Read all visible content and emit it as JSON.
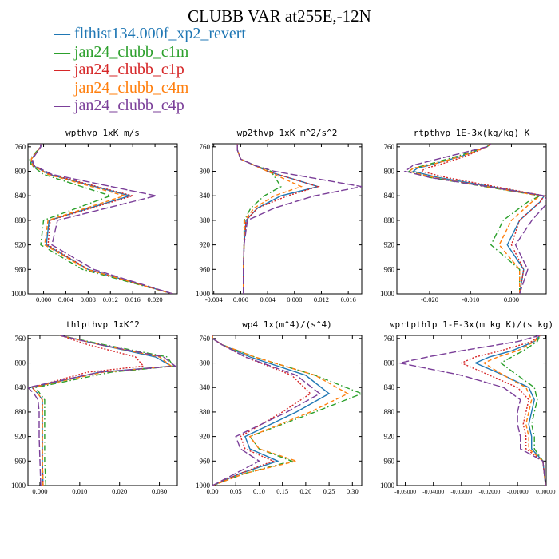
{
  "title": "CLUBB VAR at255E,-12N",
  "legend": [
    {
      "label": "flthist134.000f_xp2_revert",
      "color": "#1f77b4",
      "dash": "solid"
    },
    {
      "label": "jan24_clubb_c1m",
      "color": "#2ca02c",
      "dash": "dashdot"
    },
    {
      "label": "jan24_clubb_c1p",
      "color": "#d62728",
      "dash": "dotted"
    },
    {
      "label": "jan24_clubb_c4m",
      "color": "#ff7f0e",
      "dash": "dashed"
    },
    {
      "label": "jan24_clubb_c4p",
      "color": "#7b3f99",
      "dash": "longdash"
    }
  ],
  "chart_data": [
    {
      "type": "line",
      "title": "wpthvp  1xK m/s",
      "y": [
        1000,
        960,
        920,
        880,
        840,
        805,
        790,
        780,
        760,
        755
      ],
      "yticks": [
        760,
        800,
        840,
        880,
        920,
        960,
        1000
      ],
      "ylim": [
        755,
        1000
      ],
      "xlim": [
        -0.0028,
        0.024
      ],
      "xticks": [
        0.0,
        0.004,
        0.008,
        0.012,
        0.016,
        0.02
      ],
      "xticklabels": [
        "0.000",
        "0.004",
        "0.008",
        "0.012",
        "0.016",
        "0.020"
      ],
      "series": [
        {
          "values": [
            0.0232,
            0.008,
            0.0005,
            0.001,
            0.0155,
            0.001,
            -0.002,
            -0.0022,
            -0.0005,
            -0.0005
          ]
        },
        {
          "values": [
            0.0232,
            0.007,
            -0.0005,
            0.0,
            0.012,
            0.0,
            -0.0022,
            -0.0025,
            -0.0005,
            -0.0005
          ]
        },
        {
          "values": [
            0.0232,
            0.008,
            0.0008,
            0.0012,
            0.016,
            0.0012,
            -0.002,
            -0.0022,
            -0.0005,
            -0.0005
          ]
        },
        {
          "values": [
            0.0232,
            0.0078,
            0.0002,
            0.0008,
            0.0145,
            0.0008,
            -0.002,
            -0.0022,
            -0.0005,
            -0.0005
          ]
        },
        {
          "values": [
            0.0232,
            0.009,
            0.0015,
            0.0025,
            0.0202,
            0.0015,
            -0.0018,
            -0.002,
            -0.0005,
            -0.0005
          ]
        }
      ]
    },
    {
      "type": "line",
      "title": "wp2thvp  1xK m^2/s^2",
      "y": [
        1000,
        960,
        920,
        880,
        860,
        840,
        825,
        800,
        790,
        780,
        765,
        755
      ],
      "yticks": [
        760,
        800,
        840,
        880,
        920,
        960,
        1000
      ],
      "ylim": [
        755,
        1000
      ],
      "xlim": [
        -0.0042,
        0.018
      ],
      "xticks": [
        -0.004,
        0.0,
        0.004,
        0.008,
        0.012,
        0.016
      ],
      "xticklabels": [
        "-0.004",
        "0.000",
        "0.004",
        "0.008",
        "0.012",
        "0.016"
      ],
      "series": [
        {
          "values": [
            0.0004,
            0.0004,
            0.0005,
            0.0008,
            0.0025,
            0.006,
            0.0115,
            0.004,
            0.002,
            0.0,
            -0.0005,
            -0.0005
          ]
        },
        {
          "values": [
            0.0004,
            0.0004,
            0.0005,
            0.0005,
            0.0015,
            0.0035,
            0.006,
            0.0045,
            0.002,
            0.0,
            -0.0005,
            -0.0005
          ]
        },
        {
          "values": [
            0.0004,
            0.0004,
            0.0005,
            0.0008,
            0.0025,
            0.007,
            0.0115,
            0.004,
            0.002,
            0.0,
            -0.0005,
            -0.0005
          ]
        },
        {
          "values": [
            0.0004,
            0.0004,
            0.0005,
            0.0006,
            0.002,
            0.005,
            0.009,
            0.004,
            0.002,
            0.0,
            -0.0005,
            -0.0005
          ]
        },
        {
          "values": [
            0.0004,
            0.0004,
            0.0005,
            0.001,
            0.005,
            0.011,
            0.018,
            0.005,
            0.002,
            0.0,
            -0.0005,
            -0.0005
          ]
        }
      ]
    },
    {
      "type": "line",
      "title": "rtpthvp  1E-3x(kg/kg) K",
      "y": [
        1000,
        960,
        920,
        880,
        850,
        840,
        810,
        800,
        795,
        790,
        775,
        760,
        755
      ],
      "yticks": [
        760,
        800,
        840,
        880,
        920,
        960,
        1000
      ],
      "ylim": [
        755,
        1000
      ],
      "xlim": [
        -0.028,
        0.0085
      ],
      "xticks": [
        -0.02,
        -0.01,
        0.0
      ],
      "xticklabels": [
        "-0.020",
        "-0.010",
        "0.000"
      ],
      "series": [
        {
          "values": [
            0.002,
            0.003,
            -0.001,
            0.002,
            0.007,
            0.008,
            -0.018,
            -0.024,
            -0.023,
            -0.02,
            -0.012,
            -0.006,
            -0.005
          ]
        },
        {
          "values": [
            0.002,
            0.002,
            -0.005,
            -0.002,
            0.004,
            0.007,
            -0.02,
            -0.025,
            -0.024,
            -0.021,
            -0.013,
            -0.006,
            -0.005
          ]
        },
        {
          "values": [
            0.002,
            0.003,
            0.0,
            0.002,
            0.007,
            0.008,
            -0.016,
            -0.022,
            -0.021,
            -0.018,
            -0.011,
            -0.006,
            -0.005
          ]
        },
        {
          "values": [
            0.002,
            0.002,
            -0.003,
            0.0,
            0.005,
            0.007,
            -0.019,
            -0.025,
            -0.024,
            -0.02,
            -0.012,
            -0.006,
            -0.005
          ]
        },
        {
          "values": [
            0.002,
            0.004,
            0.001,
            0.005,
            0.009,
            0.008,
            -0.02,
            -0.026,
            -0.025,
            -0.024,
            -0.015,
            -0.006,
            -0.005
          ]
        }
      ]
    },
    {
      "type": "line",
      "title": "thlpthvp  1xK^2",
      "y": [
        1000,
        960,
        920,
        880,
        860,
        850,
        840,
        815,
        805,
        790,
        770,
        755
      ],
      "yticks": [
        760,
        800,
        840,
        880,
        920,
        960,
        1000
      ],
      "ylim": [
        755,
        1000
      ],
      "xlim": [
        -0.003,
        0.0345
      ],
      "xticks": [
        0.0,
        0.01,
        0.02,
        0.03
      ],
      "xticklabels": [
        "0.000",
        "0.010",
        "0.020",
        "0.030"
      ],
      "series": [
        {
          "values": [
            0.0008,
            0.0006,
            0.0006,
            0.0006,
            0.0006,
            -0.0005,
            -0.002,
            0.015,
            0.033,
            0.029,
            0.015,
            0.005
          ]
        },
        {
          "values": [
            0.0015,
            0.0012,
            0.0012,
            0.0012,
            0.0012,
            0.0,
            -0.001,
            0.018,
            0.0335,
            0.032,
            0.016,
            0.005
          ]
        },
        {
          "values": [
            0.0008,
            0.0006,
            0.0006,
            0.0006,
            0.0006,
            -0.0005,
            -0.002,
            0.012,
            0.026,
            0.024,
            0.012,
            0.005
          ]
        },
        {
          "values": [
            0.0008,
            0.0006,
            0.0006,
            0.0006,
            0.0006,
            -0.0005,
            -0.002,
            0.016,
            0.033,
            0.03,
            0.015,
            0.005
          ]
        },
        {
          "values": [
            0.0002,
            0.0,
            -0.0002,
            -0.0002,
            -0.0005,
            -0.0015,
            -0.003,
            0.015,
            0.034,
            0.031,
            0.015,
            0.005
          ]
        }
      ]
    },
    {
      "type": "line",
      "title": "wp4  1x(m^4)/(s^4)",
      "y": [
        1000,
        980,
        960,
        940,
        920,
        880,
        850,
        820,
        790,
        770,
        760,
        755
      ],
      "yticks": [
        760,
        800,
        840,
        880,
        920,
        960,
        1000
      ],
      "ylim": [
        755,
        1000
      ],
      "xlim": [
        0.0,
        0.32
      ],
      "xticks": [
        0.0,
        0.05,
        0.1,
        0.15,
        0.2,
        0.25,
        0.3
      ],
      "xticklabels": [
        "0.00",
        "0.05",
        "0.10",
        "0.15",
        "0.20",
        "0.25",
        "0.30"
      ],
      "series": [
        {
          "values": [
            0.0,
            0.06,
            0.14,
            0.08,
            0.07,
            0.18,
            0.25,
            0.2,
            0.08,
            0.02,
            0.0,
            0.0
          ]
        },
        {
          "values": [
            0.0,
            0.07,
            0.17,
            0.1,
            0.08,
            0.22,
            0.32,
            0.22,
            0.09,
            0.02,
            0.0,
            0.0
          ]
        },
        {
          "values": [
            0.0,
            0.06,
            0.13,
            0.07,
            0.06,
            0.15,
            0.21,
            0.17,
            0.07,
            0.02,
            0.0,
            0.0
          ]
        },
        {
          "values": [
            0.0,
            0.07,
            0.18,
            0.1,
            0.08,
            0.21,
            0.29,
            0.22,
            0.09,
            0.02,
            0.0,
            0.0
          ]
        },
        {
          "values": [
            0.0,
            0.05,
            0.1,
            0.06,
            0.05,
            0.16,
            0.23,
            0.18,
            0.07,
            0.02,
            0.0,
            0.0
          ]
        }
      ]
    },
    {
      "type": "line",
      "title": "wprtpthlp  1-E-3x(m kg K)/(s kg)",
      "y": [
        1000,
        960,
        940,
        920,
        900,
        880,
        860,
        840,
        820,
        800,
        790,
        780,
        765,
        755
      ],
      "yticks": [
        760,
        800,
        840,
        880,
        920,
        960,
        1000
      ],
      "ylim": [
        755,
        1000
      ],
      "xlim": [
        -0.053,
        0.0002
      ],
      "xticks": [
        -0.05,
        -0.04,
        -0.03,
        -0.02,
        -0.01,
        0.0
      ],
      "xticklabels": [
        "-0.05000",
        "-0.04000",
        "-0.03000",
        "-0.02000",
        "-0.01000",
        "0.00000"
      ],
      "series": [
        {
          "values": [
            0.0,
            -0.001,
            -0.005,
            -0.005,
            -0.006,
            -0.005,
            -0.004,
            -0.006,
            -0.015,
            -0.025,
            -0.02,
            -0.012,
            -0.004,
            -0.002
          ]
        },
        {
          "values": [
            0.0,
            -0.001,
            -0.004,
            -0.004,
            -0.005,
            -0.004,
            -0.003,
            -0.004,
            -0.01,
            -0.016,
            -0.012,
            -0.008,
            -0.003,
            -0.002
          ]
        },
        {
          "values": [
            0.0,
            -0.001,
            -0.007,
            -0.007,
            -0.008,
            -0.007,
            -0.006,
            -0.01,
            -0.02,
            -0.03,
            -0.025,
            -0.016,
            -0.005,
            -0.002
          ]
        },
        {
          "values": [
            0.0,
            -0.001,
            -0.006,
            -0.006,
            -0.007,
            -0.006,
            -0.005,
            -0.007,
            -0.015,
            -0.022,
            -0.017,
            -0.01,
            -0.004,
            -0.002
          ]
        },
        {
          "values": [
            0.0,
            -0.001,
            -0.009,
            -0.009,
            -0.01,
            -0.01,
            -0.009,
            -0.015,
            -0.03,
            -0.052,
            -0.042,
            -0.03,
            -0.01,
            -0.002
          ]
        }
      ]
    }
  ]
}
